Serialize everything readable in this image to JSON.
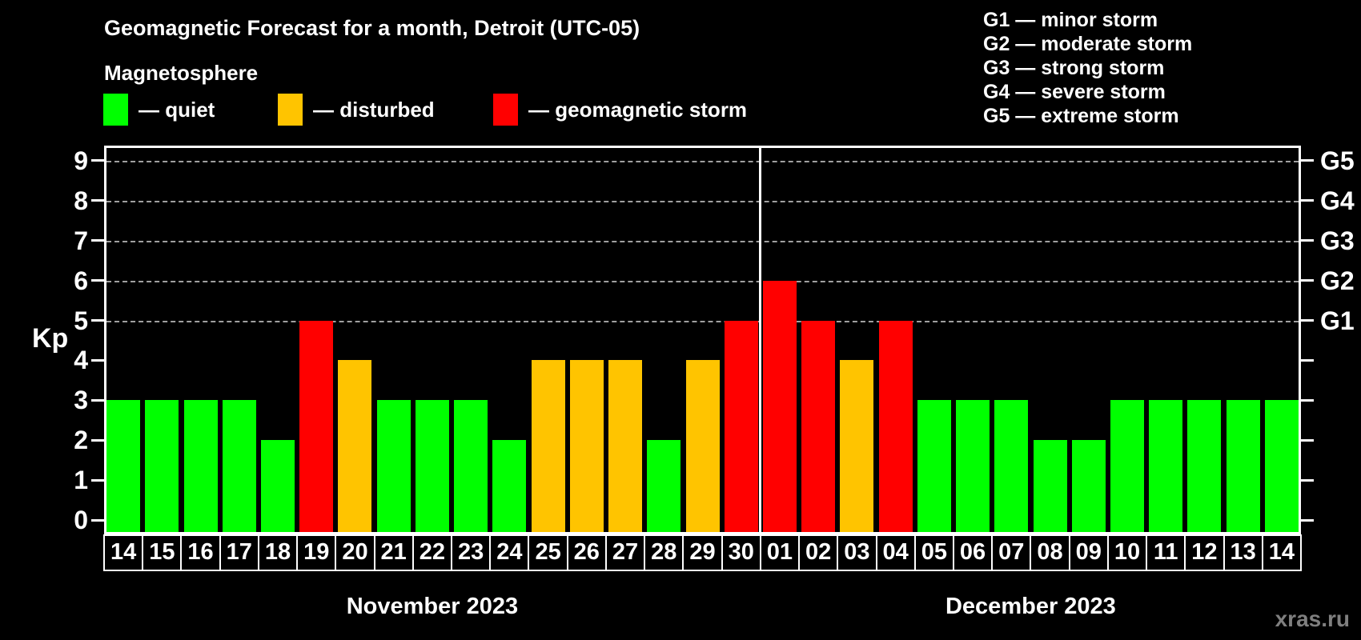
{
  "title": "Geomagnetic Forecast for a month, Detroit (UTC-05)",
  "subtitle": "Magnetosphere",
  "legend": {
    "items": [
      {
        "key": "quiet",
        "label": "— quiet",
        "color": "#00ff00"
      },
      {
        "key": "disturbed",
        "label": "— disturbed",
        "color": "#ffc400"
      },
      {
        "key": "storm",
        "label": "— geomagnetic storm",
        "color": "#ff0000"
      }
    ]
  },
  "g_scale_legend": [
    "G1 — minor storm",
    "G2 — moderate storm",
    "G3 — strong storm",
    "G4 — severe storm",
    "G5 — extreme storm"
  ],
  "watermark": "xras.ru",
  "colors": {
    "quiet": "#00ff00",
    "disturbed": "#ffc400",
    "storm": "#ff0000",
    "background": "#000000",
    "text": "#ffffff",
    "grid": "#a0a0a0",
    "watermark": "#7f7f7f"
  },
  "axes": {
    "kp_label": "Kp",
    "y_ticks": [
      0,
      1,
      2,
      3,
      4,
      5,
      6,
      7,
      8,
      9
    ],
    "gridlines_at": [
      5,
      6,
      7,
      8,
      9
    ],
    "right_labels": [
      {
        "value": 5,
        "label": "G1"
      },
      {
        "value": 6,
        "label": "G2"
      },
      {
        "value": 7,
        "label": "G3"
      },
      {
        "value": 8,
        "label": "G4"
      },
      {
        "value": 9,
        "label": "G5"
      }
    ]
  },
  "chart_data": {
    "type": "bar",
    "title": "Geomagnetic Forecast for a month, Detroit (UTC-05)",
    "ylabel": "Kp",
    "ylim": [
      0,
      9
    ],
    "grid": "dashed horizontal lines at Kp 5-9 (G1-G5)",
    "legend_position": "top-left",
    "months": [
      {
        "name": "November 2023",
        "short": "nov"
      },
      {
        "name": "December 2023",
        "short": "dec"
      }
    ],
    "points": [
      {
        "month_index": 0,
        "day": "14",
        "kp": 3,
        "status": "quiet"
      },
      {
        "month_index": 0,
        "day": "15",
        "kp": 3,
        "status": "quiet"
      },
      {
        "month_index": 0,
        "day": "16",
        "kp": 3,
        "status": "quiet"
      },
      {
        "month_index": 0,
        "day": "17",
        "kp": 3,
        "status": "quiet"
      },
      {
        "month_index": 0,
        "day": "18",
        "kp": 2,
        "status": "quiet"
      },
      {
        "month_index": 0,
        "day": "19",
        "kp": 5,
        "status": "storm"
      },
      {
        "month_index": 0,
        "day": "20",
        "kp": 4,
        "status": "disturbed"
      },
      {
        "month_index": 0,
        "day": "21",
        "kp": 3,
        "status": "quiet"
      },
      {
        "month_index": 0,
        "day": "22",
        "kp": 3,
        "status": "quiet"
      },
      {
        "month_index": 0,
        "day": "23",
        "kp": 3,
        "status": "quiet"
      },
      {
        "month_index": 0,
        "day": "24",
        "kp": 2,
        "status": "quiet"
      },
      {
        "month_index": 0,
        "day": "25",
        "kp": 4,
        "status": "disturbed"
      },
      {
        "month_index": 0,
        "day": "26",
        "kp": 4,
        "status": "disturbed"
      },
      {
        "month_index": 0,
        "day": "27",
        "kp": 4,
        "status": "disturbed"
      },
      {
        "month_index": 0,
        "day": "28",
        "kp": 2,
        "status": "quiet"
      },
      {
        "month_index": 0,
        "day": "29",
        "kp": 4,
        "status": "disturbed"
      },
      {
        "month_index": 0,
        "day": "30",
        "kp": 5,
        "status": "storm"
      },
      {
        "month_index": 1,
        "day": "01",
        "kp": 6,
        "status": "storm"
      },
      {
        "month_index": 1,
        "day": "02",
        "kp": 5,
        "status": "storm"
      },
      {
        "month_index": 1,
        "day": "03",
        "kp": 4,
        "status": "disturbed"
      },
      {
        "month_index": 1,
        "day": "04",
        "kp": 5,
        "status": "storm"
      },
      {
        "month_index": 1,
        "day": "05",
        "kp": 3,
        "status": "quiet"
      },
      {
        "month_index": 1,
        "day": "06",
        "kp": 3,
        "status": "quiet"
      },
      {
        "month_index": 1,
        "day": "07",
        "kp": 3,
        "status": "quiet"
      },
      {
        "month_index": 1,
        "day": "08",
        "kp": 2,
        "status": "quiet"
      },
      {
        "month_index": 1,
        "day": "09",
        "kp": 2,
        "status": "quiet"
      },
      {
        "month_index": 1,
        "day": "10",
        "kp": 3,
        "status": "quiet"
      },
      {
        "month_index": 1,
        "day": "11",
        "kp": 3,
        "status": "quiet"
      },
      {
        "month_index": 1,
        "day": "12",
        "kp": 3,
        "status": "quiet"
      },
      {
        "month_index": 1,
        "day": "13",
        "kp": 3,
        "status": "quiet"
      },
      {
        "month_index": 1,
        "day": "14",
        "kp": 3,
        "status": "quiet"
      }
    ]
  }
}
